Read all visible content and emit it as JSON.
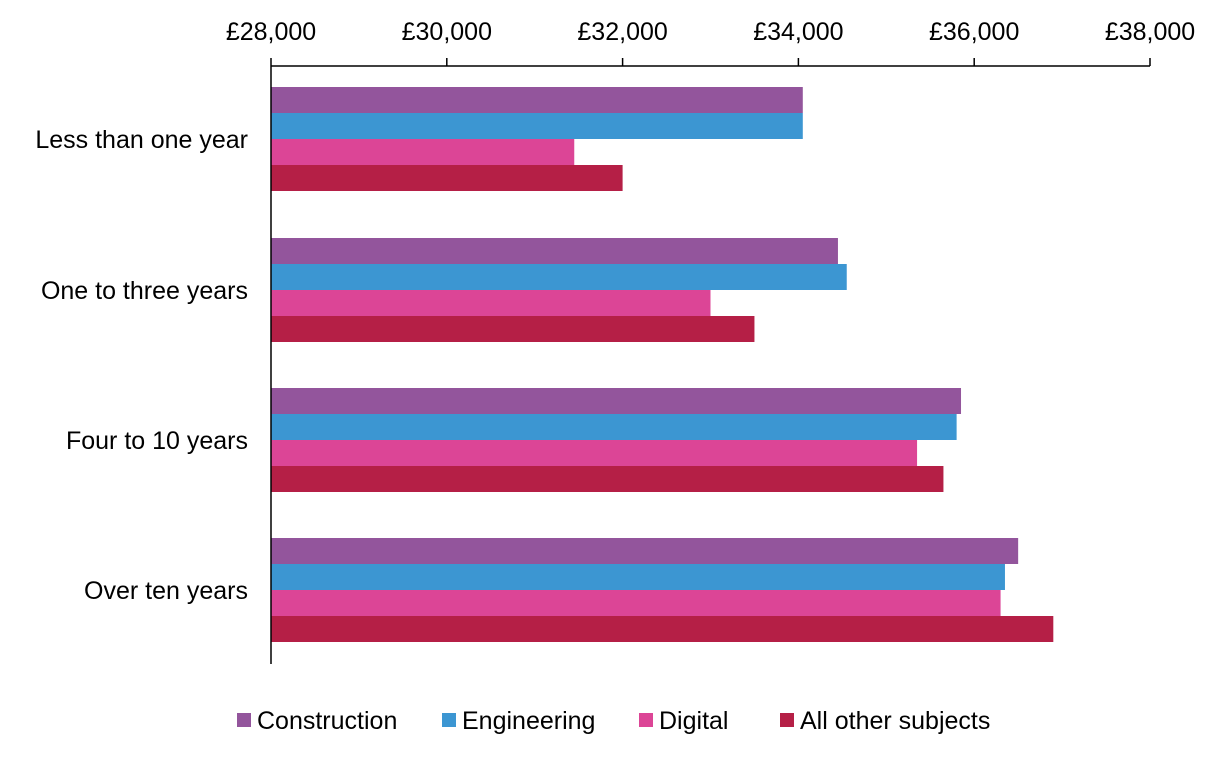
{
  "chart_data": {
    "type": "bar",
    "orientation": "horizontal",
    "axis_position": "top",
    "categories": [
      "Less than one year",
      "One to three years",
      "Four to 10 years",
      "Over ten years"
    ],
    "xlim": [
      28000,
      38000
    ],
    "ticks": [
      28000,
      30000,
      32000,
      34000,
      36000,
      38000
    ],
    "tick_labels": [
      "£28,000",
      "£30,000",
      "£32,000",
      "£34,000",
      "£36,000",
      "£38,000"
    ],
    "grid": false,
    "legend_position": "bottom",
    "series": [
      {
        "name": "Construction",
        "color": "#93559C",
        "values": [
          34050,
          34450,
          35850,
          36500
        ]
      },
      {
        "name": "Engineering",
        "color": "#3C96D2",
        "values": [
          34050,
          34550,
          35800,
          36350
        ]
      },
      {
        "name": "Digital",
        "color": "#DC4596",
        "values": [
          31450,
          33000,
          35350,
          36300
        ]
      },
      {
        "name": "All other subjects",
        "color": "#B51F46",
        "values": [
          32000,
          33500,
          35650,
          36900
        ]
      }
    ]
  }
}
